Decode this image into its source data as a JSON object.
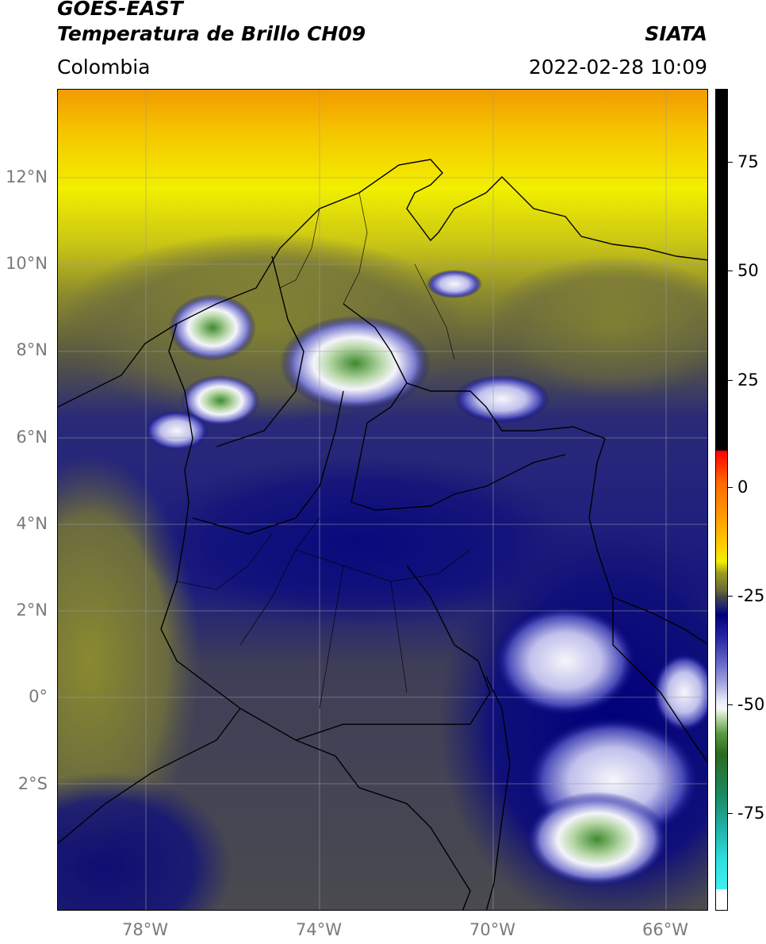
{
  "header": {
    "satellite": "GOES-EAST",
    "product": "Temperatura de Brillo CH09",
    "org": "SIATA",
    "region": "Colombia",
    "datetime": "2022-02-28 10:09"
  },
  "map": {
    "lat_labels": [
      "12°N",
      "10°N",
      "8°N",
      "6°N",
      "4°N",
      "2°N",
      "0°",
      "2°S"
    ],
    "lon_labels": [
      "78°W",
      "74°W",
      "70°W",
      "66°W"
    ],
    "palette": {
      "warm_top": "#f8a000",
      "yellow": "#f2ef00",
      "olive": "#8a8a30",
      "gray_dark": "#3e3e55",
      "deep_blue": "#00007a",
      "white": "#f0f0f8",
      "green": "#3f8a30"
    }
  },
  "colorbar": {
    "labels": [
      "75",
      "50",
      "25",
      "0",
      "-25",
      "-50",
      "-75"
    ]
  }
}
